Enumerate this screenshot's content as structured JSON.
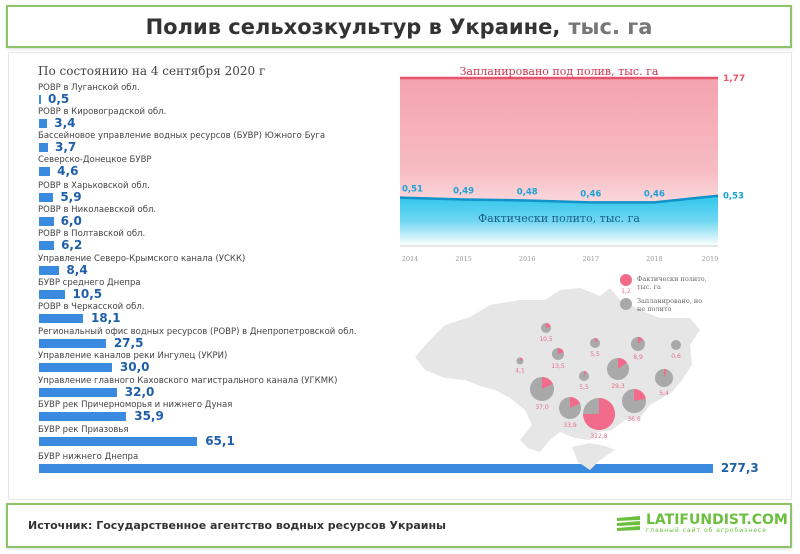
{
  "title": {
    "main": "Полив сельхозкультур в Украине,",
    "unit": "тыс. га"
  },
  "subtitle": "По состоянию на 4 сентября 2020 г",
  "footer": {
    "source": "Источник: Государственное агентство водных ресурсов Украины",
    "logo": "LATIFUNDIST.COM",
    "logo_tagline": "главный сайт об агробизнесе"
  },
  "chart_data": [
    {
      "type": "bar",
      "orientation": "horizontal",
      "title": "По состоянию на 4 сентября 2020 г",
      "categories": [
        "РОВР в Луганской обл.",
        "РОВР в Кировоградской обл.",
        "Бассейновое управление водных ресурсов (БУВР) Южного Буга",
        "Северско-Донецкое БУВР",
        "РОВР в Харьковской обл.",
        "РОВР в Николаевской обл.",
        "РОВР в Полтавской обл.",
        "Управление Северо-Крымского канала (УСКК)",
        "БУВР среднего Днепра",
        "РОВР в Черкасской обл.",
        "Региональный офис водных ресурсов (РОВР) в Днепропетровской обл.",
        "Управление каналов реки Ингулец (УКРИ)",
        "Управление главного Каховского магистрального канала (УГКМК)",
        "БУВР рек Причерноморья и нижнего Дуная",
        "БУВР рек Приазовья",
        "БУВР нижнего Днепра"
      ],
      "values": [
        0.5,
        3.4,
        3.7,
        4.6,
        5.9,
        6.0,
        6.2,
        8.4,
        10.5,
        18.1,
        27.5,
        30.0,
        32.0,
        35.9,
        65.1,
        277.3
      ],
      "labels": [
        "0,5",
        "3,4",
        "3,7",
        "4,6",
        "5,9",
        "6,0",
        "6,2",
        "8,4",
        "10,5",
        "18,1",
        "27,5",
        "30,0",
        "32,0",
        "35,9",
        "65,1",
        "277,3"
      ],
      "color": "#3a8be0"
    },
    {
      "type": "area",
      "x": [
        "2014",
        "2015",
        "2016",
        "2017",
        "2018",
        "2019"
      ],
      "series": [
        {
          "name": "Запланировано под полив, тыс. га",
          "values": [
            1.77,
            1.77,
            1.77,
            1.77,
            1.77,
            1.77
          ],
          "end_label": "1,77",
          "color": "#e8546b"
        },
        {
          "name": "Фактически полито, тыс. га",
          "values": [
            0.51,
            0.49,
            0.48,
            0.46,
            0.46,
            0.53
          ],
          "labels": [
            "0,51",
            "0,49",
            "0,48",
            "0,46",
            "0,46",
            "0,53"
          ],
          "color": "#1ba3d8"
        }
      ],
      "ylim": [
        0,
        1.77
      ]
    },
    {
      "type": "pie-map",
      "legend": {
        "actual": "Фактически полито, тыс. га",
        "actual_example": "1,2",
        "planned": "Запланировано, но не полито"
      },
      "pies": [
        {
          "label": "10,5",
          "actual_share": 0.2
        },
        {
          "label": "4,1",
          "actual_share": 0.15
        },
        {
          "label": "13,5",
          "actual_share": 0.2
        },
        {
          "label": "5,5",
          "actual_share": 0.1
        },
        {
          "label": "8,9",
          "actual_share": 0.12
        },
        {
          "label": "0,6",
          "actual_share": 0.0
        },
        {
          "label": "5,5",
          "actual_share": 0.08
        },
        {
          "label": "29,3",
          "actual_share": 0.15
        },
        {
          "label": "5,4",
          "actual_share": 0.05
        },
        {
          "label": "37,0",
          "actual_share": 0.18
        },
        {
          "label": "33,9",
          "actual_share": 0.18
        },
        {
          "label": "322,8",
          "actual_share": 0.75
        },
        {
          "label": "36,6",
          "actual_share": 0.22
        }
      ],
      "colors": {
        "actual": "#f26b8a",
        "planned": "#a9a9a9"
      }
    }
  ]
}
